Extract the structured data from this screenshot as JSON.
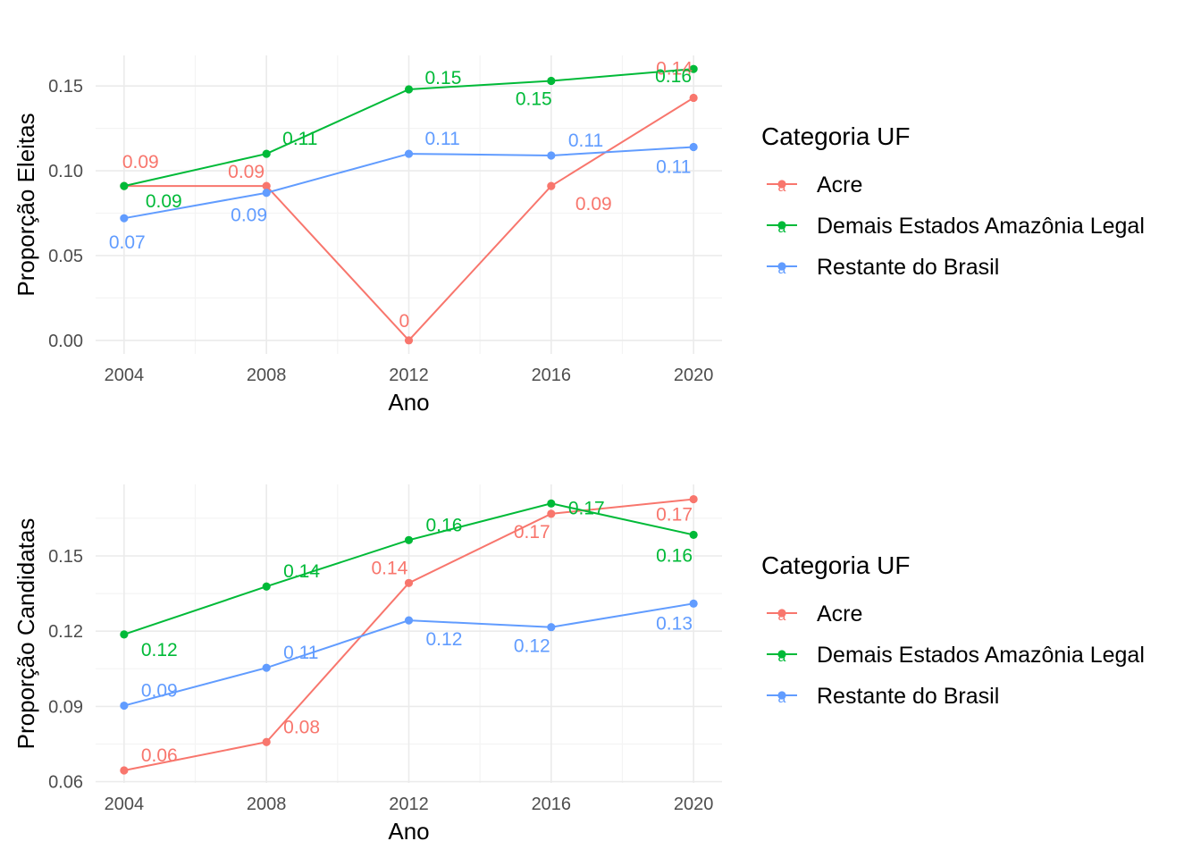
{
  "colors": {
    "Acre": "#F8766D",
    "Demais Estados Amazônia Legal": "#00BA38",
    "Restante do Brasil": "#619CFF",
    "grid_major": "#EBEBEB",
    "grid_minor": "#F4F4F4"
  },
  "chart_data": [
    {
      "type": "line",
      "xlabel": "Ano",
      "ylabel": "Proporção Eleitas",
      "x": [
        2004,
        2008,
        2012,
        2016,
        2020
      ],
      "xticks": [
        "2004",
        "2008",
        "2012",
        "2016",
        "2020"
      ],
      "yticks": [
        "0.00",
        "0.05",
        "0.10",
        "0.15"
      ],
      "ytick_values": [
        0.0,
        0.05,
        0.1,
        0.15
      ],
      "xlim": [
        2003.2,
        2020.8
      ],
      "ylim": [
        -0.008,
        0.168
      ],
      "grid": true,
      "legend": {
        "title": "Categoria UF",
        "position": "right",
        "key_glyph": "a",
        "entries": [
          "Acre",
          "Demais Estados Amazônia Legal",
          "Restante do Brasil"
        ]
      },
      "series": [
        {
          "name": "Acre",
          "values": [
            0.091,
            0.091,
            0.0,
            0.091,
            0.143
          ],
          "labels": [
            "0.09",
            "0.09",
            "0",
            "0.09",
            "0.14"
          ]
        },
        {
          "name": "Demais Estados Amazônia Legal",
          "values": [
            0.091,
            0.11,
            0.148,
            0.153,
            0.16
          ],
          "labels": [
            "0.09",
            "0.11",
            "0.15",
            "0.15",
            "0.16"
          ]
        },
        {
          "name": "Restante do Brasil",
          "values": [
            0.072,
            0.087,
            0.11,
            0.109,
            0.114
          ],
          "labels": [
            "0.07",
            "0.09",
            "0.11",
            "0.11",
            "0.11"
          ]
        }
      ]
    },
    {
      "type": "line",
      "xlabel": "Ano",
      "ylabel": "Proporção Candidatas",
      "x": [
        2004,
        2008,
        2012,
        2016,
        2020
      ],
      "xticks": [
        "2004",
        "2008",
        "2012",
        "2016",
        "2020"
      ],
      "yticks": [
        "0.06",
        "0.09",
        "0.12",
        "0.15"
      ],
      "ytick_values": [
        0.06,
        0.09,
        0.12,
        0.15
      ],
      "xlim": [
        2003.2,
        2020.8
      ],
      "ylim": [
        0.0595,
        0.1785
      ],
      "grid": true,
      "legend": {
        "title": "Categoria UF",
        "position": "right",
        "key_glyph": "a",
        "entries": [
          "Acre",
          "Demais Estados Amazônia Legal",
          "Restante do Brasil"
        ]
      },
      "series": [
        {
          "name": "Acre",
          "values": [
            0.0645,
            0.0758,
            0.1392,
            0.1668,
            0.1726
          ],
          "labels": [
            "0.06",
            "0.08",
            "0.14",
            "0.17",
            "0.17"
          ]
        },
        {
          "name": "Demais Estados Amazônia Legal",
          "values": [
            0.1187,
            0.1378,
            0.1563,
            0.1709,
            0.1584
          ],
          "labels": [
            "0.12",
            "0.14",
            "0.16",
            "0.17",
            "0.16"
          ]
        },
        {
          "name": "Restante do Brasil",
          "values": [
            0.0903,
            0.1054,
            0.1243,
            0.1216,
            0.131
          ],
          "labels": [
            "0.09",
            "0.11",
            "0.12",
            "0.12",
            "0.13"
          ]
        }
      ]
    }
  ]
}
